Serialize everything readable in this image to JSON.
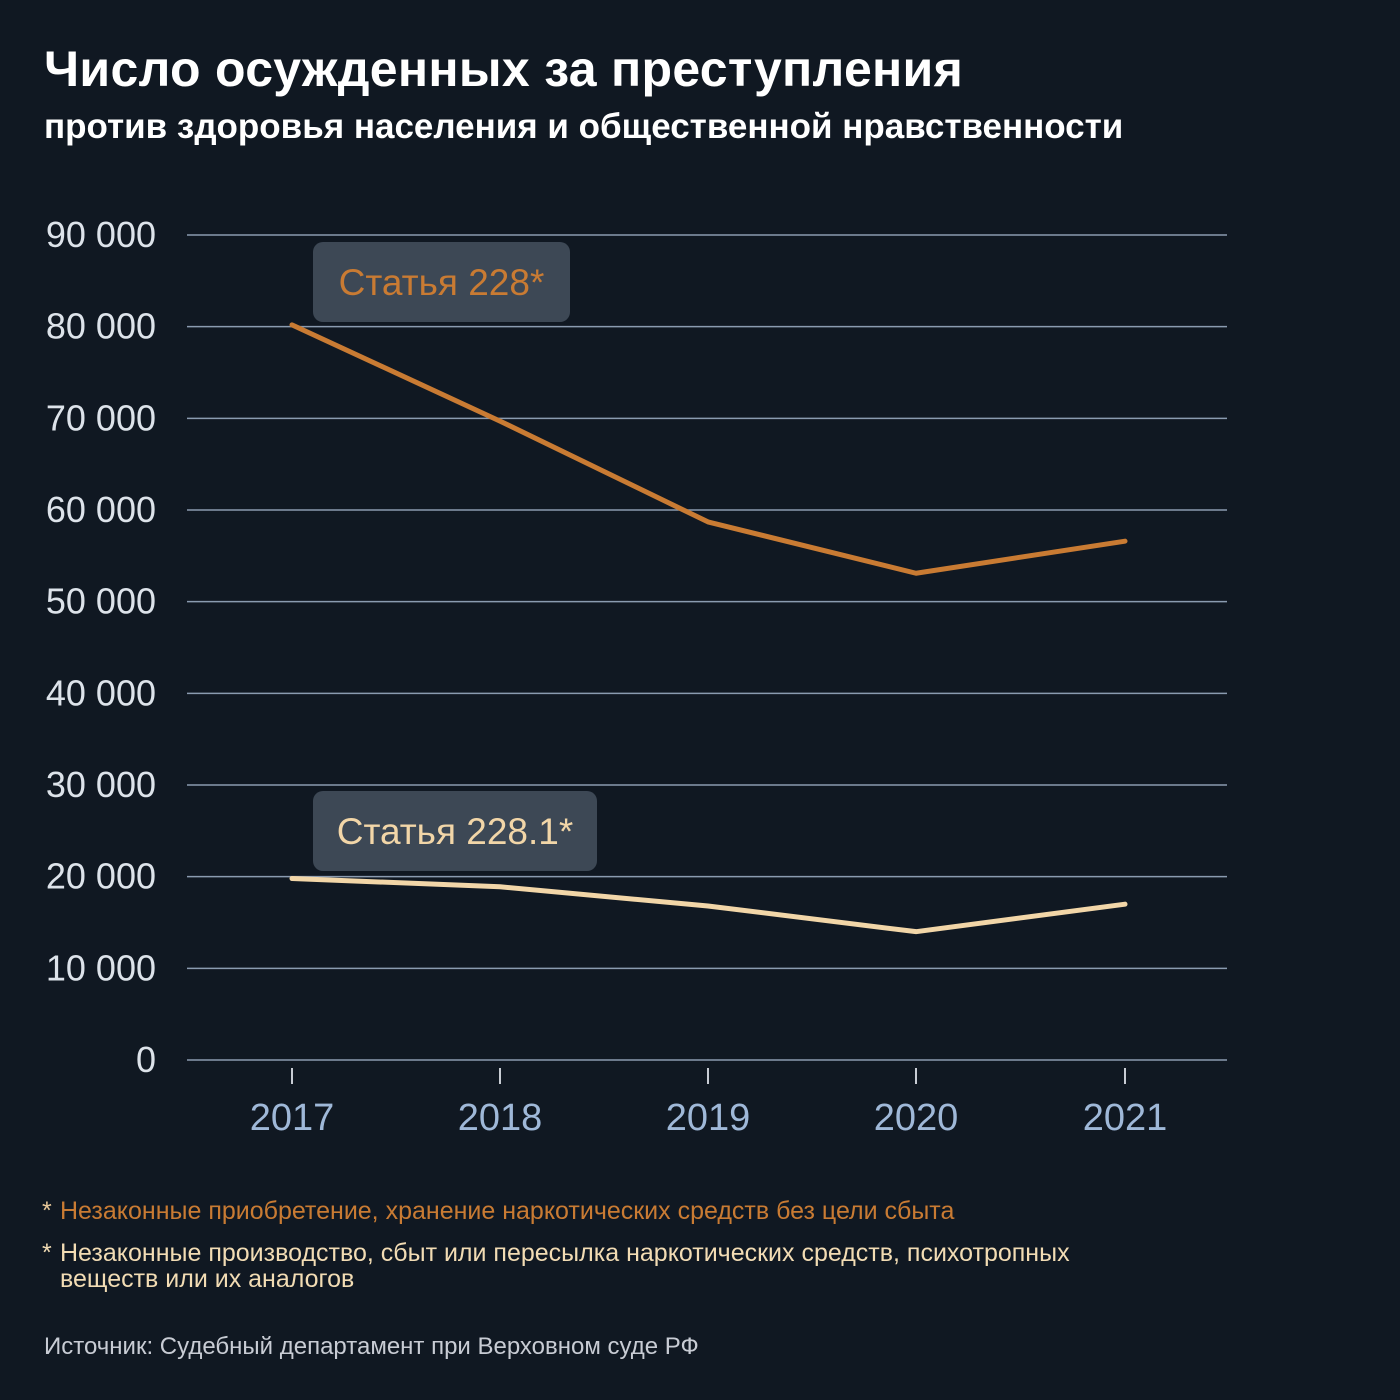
{
  "title": "Число осужденных за преступления",
  "subtitle": "против здоровья населения и общественной нравственности",
  "chart_data": {
    "type": "line",
    "x": [
      "2017",
      "2018",
      "2019",
      "2020",
      "2021"
    ],
    "ylim": [
      0,
      90000
    ],
    "yticks": [
      0,
      10000,
      20000,
      30000,
      40000,
      50000,
      60000,
      70000,
      80000,
      90000
    ],
    "ytick_labels": [
      "0",
      "10 000",
      "20 000",
      "30 000",
      "40 000",
      "50 000",
      "60 000",
      "70 000",
      "80 000",
      "90 000"
    ],
    "grid": true,
    "series": [
      {
        "name": "Статья 228*",
        "color": "#c97b33",
        "values": [
          80200,
          69700,
          58700,
          53100,
          56600
        ]
      },
      {
        "name": "Статья 228.1*",
        "color": "#f2d6a8",
        "values": [
          19800,
          18900,
          16800,
          14000,
          17000
        ]
      }
    ],
    "colors": {
      "grid": "#8a9bb0",
      "axis_labels": "#dde3ea",
      "x_labels": "#9fb8d8",
      "label_box": "#3d4855"
    }
  },
  "footnotes": [
    {
      "marker": "*",
      "text": "Незаконные приобретение, хранение наркотических средств без цели сбыта"
    },
    {
      "marker": "*",
      "text": "Незаконные производство, сбыт  или пересылка наркотических  средств, психотропных веществ или их аналогов"
    }
  ],
  "source": "Источник: Судебный департамент при Верховном суде РФ"
}
